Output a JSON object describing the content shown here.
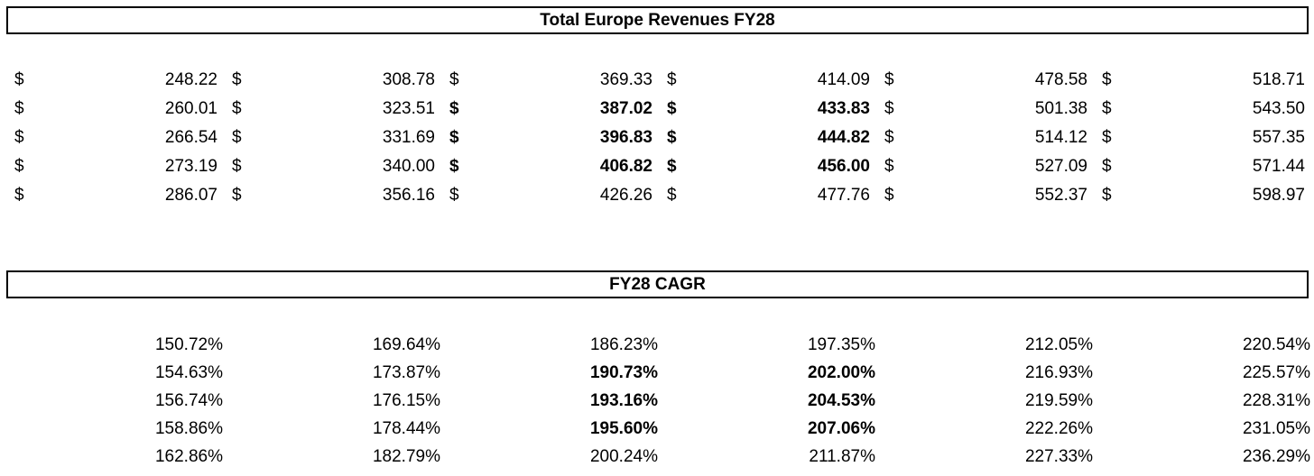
{
  "revenues": {
    "title": "Total Europe Revenues FY28",
    "currency_symbol": "$",
    "rows": [
      [
        "248.22",
        "308.78",
        "369.33",
        "414.09",
        "478.58",
        "518.71"
      ],
      [
        "260.01",
        "323.51",
        "387.02",
        "433.83",
        "501.38",
        "543.50"
      ],
      [
        "266.54",
        "331.69",
        "396.83",
        "444.82",
        "514.12",
        "557.35"
      ],
      [
        "273.19",
        "340.00",
        "406.82",
        "456.00",
        "527.09",
        "571.44"
      ],
      [
        "286.07",
        "356.16",
        "426.26",
        "477.76",
        "552.37",
        "598.97"
      ]
    ]
  },
  "cagr": {
    "title": "FY28 CAGR",
    "rows": [
      [
        "150.72%",
        "169.64%",
        "186.23%",
        "197.35%",
        "212.05%",
        "220.54%"
      ],
      [
        "154.63%",
        "173.87%",
        "190.73%",
        "202.00%",
        "216.93%",
        "225.57%"
      ],
      [
        "156.74%",
        "176.15%",
        "193.16%",
        "204.53%",
        "219.59%",
        "228.31%"
      ],
      [
        "158.86%",
        "178.44%",
        "195.60%",
        "207.06%",
        "222.26%",
        "231.05%"
      ],
      [
        "162.86%",
        "182.79%",
        "200.24%",
        "211.87%",
        "227.33%",
        "236.29%"
      ]
    ]
  }
}
